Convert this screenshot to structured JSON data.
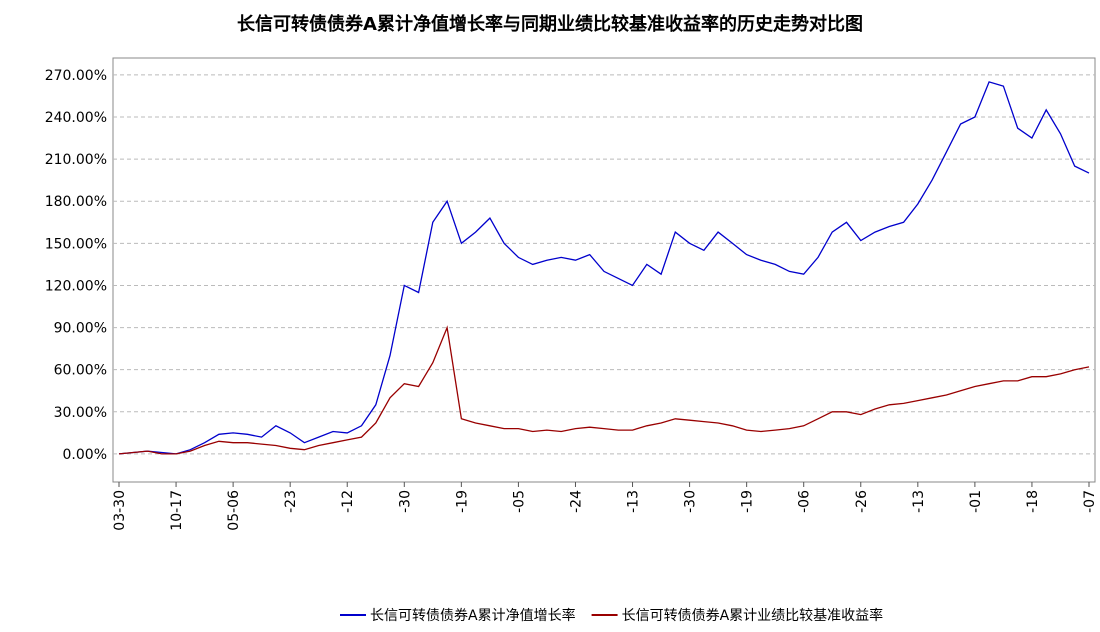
{
  "chart_data": {
    "type": "line",
    "title": "长信可转债债券A累计净值增长率与同期业绩比较基准收益率的历史走势对比图",
    "categories": [
      "03-30",
      null,
      null,
      null,
      "10-17",
      null,
      null,
      null,
      "05-06",
      null,
      null,
      null,
      "-23",
      null,
      null,
      null,
      "-12",
      null,
      null,
      null,
      "-30",
      null,
      null,
      null,
      "-19",
      null,
      null,
      null,
      "-05",
      null,
      null,
      null,
      "-24",
      null,
      null,
      null,
      "-13",
      null,
      null,
      null,
      "-30",
      null,
      null,
      null,
      "-19",
      null,
      null,
      null,
      "-06",
      null,
      null,
      null,
      "-26",
      null,
      null,
      null,
      "-13",
      null,
      null,
      null,
      "-01",
      null,
      null,
      null,
      "-18",
      null,
      null,
      null,
      "-07"
    ],
    "series": [
      {
        "name": "长信可转债债券A累计净值增长率",
        "color": "#0000cc",
        "values": [
          0,
          1,
          2,
          1,
          0,
          3,
          8,
          14,
          15,
          14,
          12,
          20,
          15,
          8,
          12,
          16,
          15,
          20,
          35,
          70,
          120,
          115,
          165,
          180,
          150,
          158,
          168,
          150,
          140,
          135,
          138,
          140,
          138,
          142,
          130,
          125,
          120,
          135,
          128,
          158,
          150,
          145,
          158,
          150,
          142,
          138,
          135,
          130,
          128,
          140,
          158,
          165,
          152,
          158,
          162,
          165,
          178,
          195,
          215,
          235,
          240,
          265,
          262,
          232,
          225,
          245,
          228,
          205,
          200
        ]
      },
      {
        "name": "长信可转债债券A累计业绩比较基准收益率",
        "color": "#990000",
        "values": [
          0,
          1,
          2,
          0,
          0,
          2,
          6,
          9,
          8,
          8,
          7,
          6,
          4,
          3,
          6,
          8,
          10,
          12,
          22,
          40,
          50,
          48,
          65,
          90,
          25,
          22,
          20,
          18,
          18,
          16,
          17,
          16,
          18,
          19,
          18,
          17,
          17,
          20,
          22,
          25,
          24,
          23,
          22,
          20,
          17,
          16,
          17,
          18,
          20,
          25,
          30,
          30,
          28,
          32,
          35,
          36,
          38,
          40,
          42,
          45,
          48,
          50,
          52,
          52,
          55,
          55,
          57,
          60,
          62
        ]
      }
    ],
    "ylim": [
      -20,
      282
    ],
    "yticks": [
      {
        "value": 0,
        "label": "0.00%"
      },
      {
        "value": 30,
        "label": "30.00%"
      },
      {
        "value": 60,
        "label": "60.00%"
      },
      {
        "value": 90,
        "label": "90.00%"
      },
      {
        "value": 120,
        "label": "120.00%"
      },
      {
        "value": 150,
        "label": "150.00%"
      },
      {
        "value": 180,
        "label": "180.00%"
      },
      {
        "value": 210,
        "label": "210.00%"
      },
      {
        "value": 240,
        "label": "240.00%"
      },
      {
        "value": 270,
        "label": "270.00%"
      }
    ],
    "grid": true,
    "legend": "bottom"
  }
}
